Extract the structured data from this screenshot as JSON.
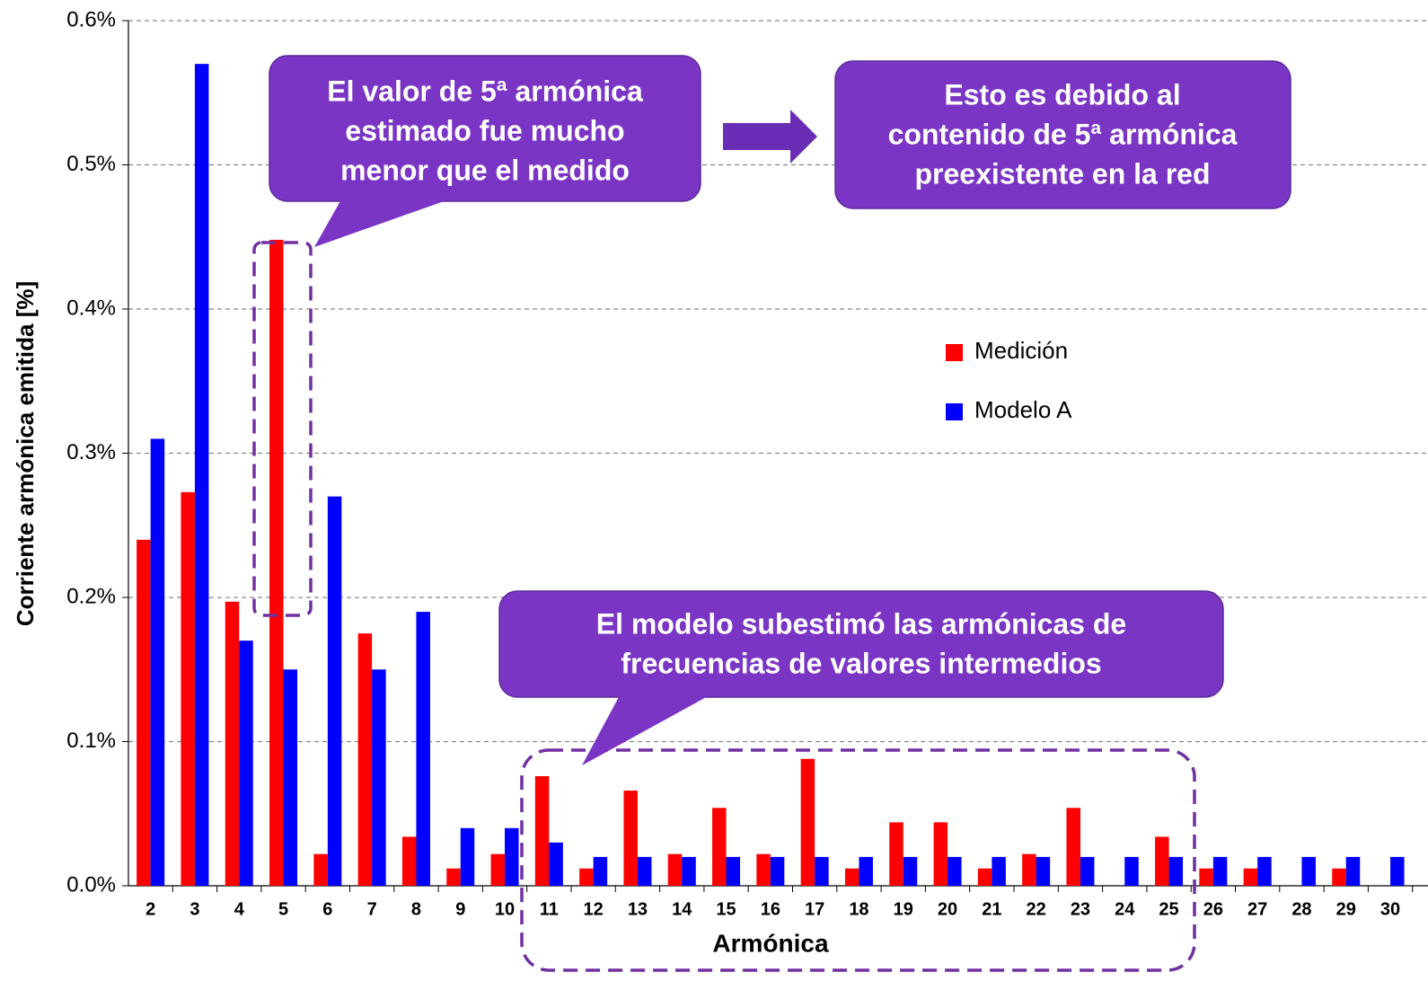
{
  "chart_data": {
    "type": "bar",
    "x_label": "Armónica",
    "y_label": "Corriente armónica emitida [%]",
    "categories": [
      "2",
      "3",
      "4",
      "5",
      "6",
      "7",
      "8",
      "9",
      "10",
      "11",
      "12",
      "13",
      "14",
      "15",
      "16",
      "17",
      "18",
      "19",
      "20",
      "21",
      "22",
      "23",
      "24",
      "25",
      "26",
      "27",
      "28",
      "29",
      "30"
    ],
    "series": [
      {
        "name": "Medición",
        "color": "#ff0000",
        "values": [
          0.24,
          0.273,
          0.197,
          0.448,
          0.022,
          0.175,
          0.034,
          0.012,
          0.022,
          0.076,
          0.012,
          0.066,
          0.022,
          0.054,
          0.022,
          0.088,
          0.012,
          0.044,
          0.044,
          0.012,
          0.022,
          0.054,
          0,
          0.034,
          0.012,
          0.012,
          0,
          0.012,
          0
        ]
      },
      {
        "name": "Modelo A",
        "color": "#0000ff",
        "values": [
          0.31,
          0.57,
          0.17,
          0.15,
          0.27,
          0.15,
          0.19,
          0.04,
          0.04,
          0.03,
          0.02,
          0.02,
          0.02,
          0.02,
          0.02,
          0.02,
          0.02,
          0.02,
          0.02,
          0.02,
          0.02,
          0.02,
          0.02,
          0.02,
          0.02,
          0.02,
          0.02,
          0.02,
          0.02
        ]
      }
    ],
    "ylim": [
      0,
      0.6
    ],
    "yticks": [
      {
        "value": 0,
        "label": "0.0%"
      },
      {
        "value": 0.1,
        "label": "0.1%"
      },
      {
        "value": 0.2,
        "label": "0.2%"
      },
      {
        "value": 0.3,
        "label": "0.3%"
      },
      {
        "value": 0.4,
        "label": "0.4%"
      },
      {
        "value": 0.5,
        "label": "0.5%"
      },
      {
        "value": 0.6,
        "label": "0.6%"
      }
    ],
    "grid": true,
    "annotations": [
      {
        "lines": [
          "El valor de 5ª armónica",
          "estimado fue mucho",
          "menor que el medido"
        ]
      },
      {
        "lines": [
          "Esto es debido al",
          "contenido de 5ª armónica",
          "preexistente en la red"
        ]
      },
      {
        "lines": [
          "El modelo subestimó las armónicas de",
          "frecuencias de valores intermedios"
        ]
      }
    ]
  }
}
